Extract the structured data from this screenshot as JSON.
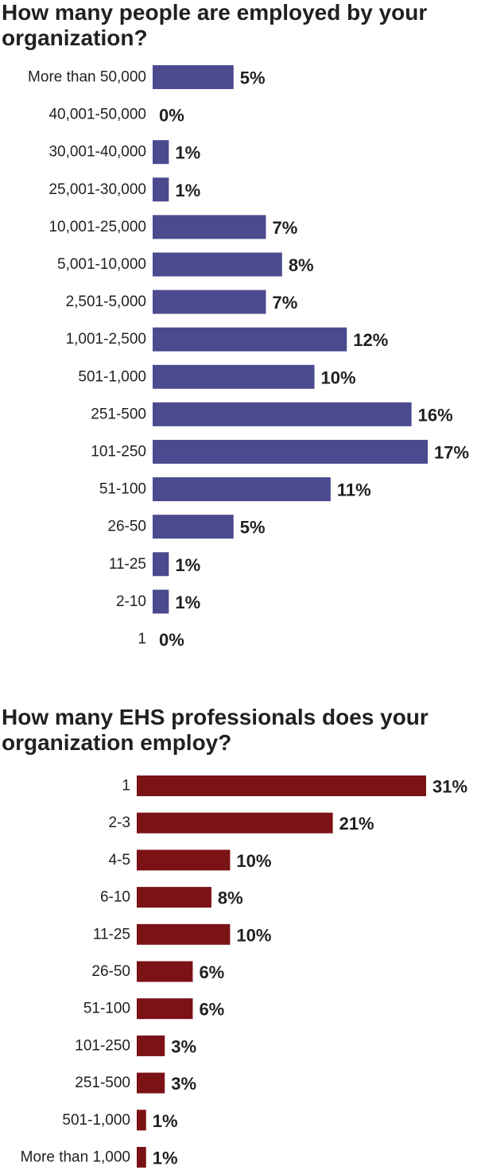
{
  "chart_data": [
    {
      "type": "bar",
      "orientation": "horizontal",
      "title": "How many people are employed by your organization?",
      "categories": [
        "More than 50,000",
        "40,001-50,000",
        "30,001-40,000",
        "25,001-30,000",
        "10,001-25,000",
        "5,001-10,000",
        "2,501-5,000",
        "1,001-2,500",
        "501-1,000",
        "251-500",
        "101-250",
        "51-100",
        "26-50",
        "11-25",
        "2-10",
        "1"
      ],
      "values": [
        5,
        0,
        1,
        1,
        7,
        8,
        7,
        12,
        10,
        16,
        17,
        11,
        5,
        1,
        1,
        0
      ],
      "value_labels": [
        "5%",
        "0%",
        "1%",
        "1%",
        "7%",
        "8%",
        "7%",
        "12%",
        "10%",
        "16%",
        "17%",
        "11%",
        "5%",
        "1%",
        "1%",
        "0%"
      ],
      "color": "#4b4a8e",
      "xlabel": "",
      "ylabel": "",
      "grid": false
    },
    {
      "type": "bar",
      "orientation": "horizontal",
      "title": "How many EHS professionals does your organization employ?",
      "categories": [
        "1",
        "2-3",
        "4-5",
        "6-10",
        "11-25",
        "26-50",
        "51-100",
        "101-250",
        "251-500",
        "501-1,000",
        "More than 1,000"
      ],
      "values": [
        31,
        21,
        10,
        8,
        10,
        6,
        6,
        3,
        3,
        1,
        1
      ],
      "value_labels": [
        "31%",
        "21%",
        "10%",
        "8%",
        "10%",
        "6%",
        "6%",
        "3%",
        "3%",
        "1%",
        "1%"
      ],
      "color": "#7b1216",
      "xlabel": "",
      "ylabel": "",
      "grid": false
    }
  ]
}
